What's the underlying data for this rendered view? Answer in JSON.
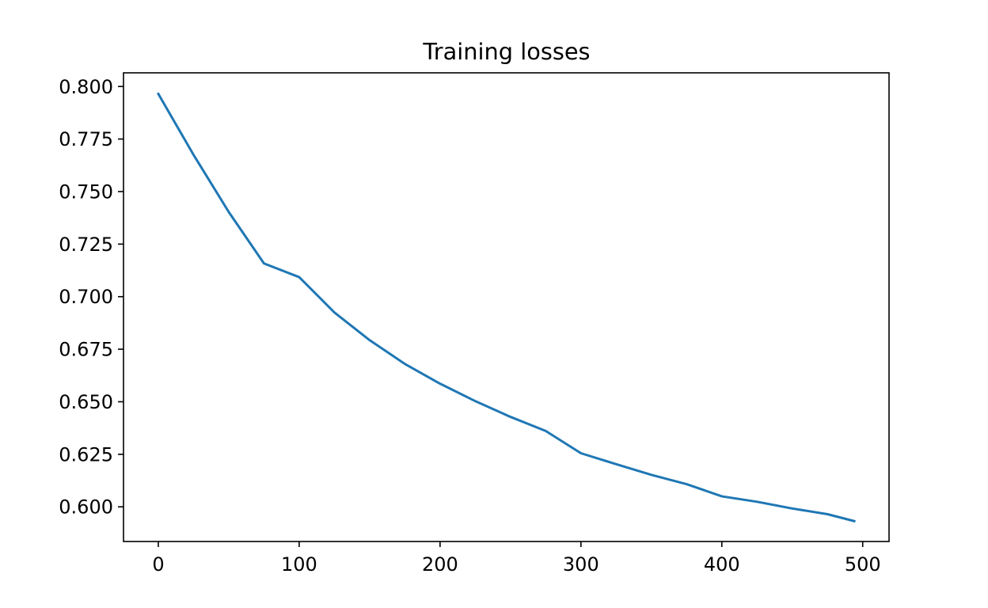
{
  "chart_data": {
    "type": "line",
    "title": "Training losses",
    "xlabel": "",
    "ylabel": "",
    "xlim": [
      -24.7,
      518.7
    ],
    "ylim": [
      0.5835,
      0.8065
    ],
    "x_ticks": [
      0,
      100,
      200,
      300,
      400,
      500
    ],
    "x_tick_labels": [
      "0",
      "100",
      "200",
      "300",
      "400",
      "500"
    ],
    "y_ticks": [
      0.6,
      0.625,
      0.65,
      0.675,
      0.7,
      0.725,
      0.75,
      0.775,
      0.8
    ],
    "y_tick_labels": [
      "0.600",
      "0.625",
      "0.650",
      "0.675",
      "0.700",
      "0.725",
      "0.750",
      "0.775",
      "0.800"
    ],
    "grid": false,
    "series": [
      {
        "color": "#1f77b4",
        "x": [
          0,
          25,
          50,
          75,
          100,
          125,
          150,
          175,
          200,
          225,
          250,
          275,
          300,
          325,
          350,
          375,
          400,
          425,
          450,
          475,
          494
        ],
        "y": [
          0.7965,
          0.7675,
          0.7403,
          0.7158,
          0.7093,
          0.6925,
          0.6793,
          0.668,
          0.6586,
          0.6503,
          0.6428,
          0.6361,
          0.6255,
          0.6203,
          0.6152,
          0.6108,
          0.605,
          0.6024,
          0.5992,
          0.5965,
          0.5932
        ]
      }
    ]
  }
}
